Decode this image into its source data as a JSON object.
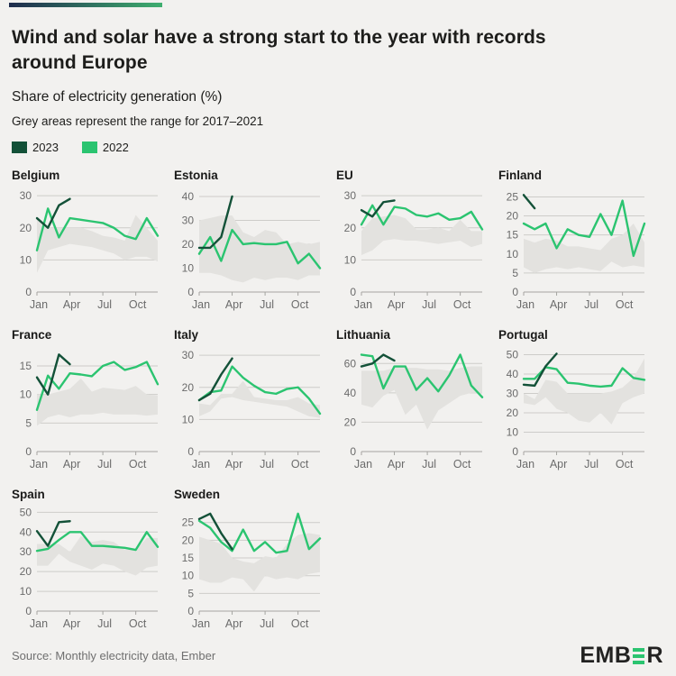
{
  "header": {
    "title": "Wind and solar have a strong start to the year with records around Europe",
    "subtitle": "Share of electricity generation (%)",
    "note": "Grey areas represent the range for 2017–2021"
  },
  "legend": [
    {
      "label": "2023",
      "color": "#135138"
    },
    {
      "label": "2022",
      "color": "#2bc470"
    }
  ],
  "colors": {
    "series_2023": "#135138",
    "series_2022": "#2bc470",
    "band": "#e3e2df",
    "background": "#f2f1ef",
    "gridline": "#cdccc9",
    "axis": "#a5a4a1",
    "tick_label": "#6b6b6b"
  },
  "footer": {
    "source": "Source: Monthly electricity data, Ember",
    "logo_left": "EMB",
    "logo_right": "R"
  },
  "chart_data": [
    {
      "type": "line",
      "title": "Belgium",
      "xticks": [
        "Jan",
        "Apr",
        "Jul",
        "Oct"
      ],
      "yticks": [
        0,
        10,
        20,
        30
      ],
      "ymax_plot": 32,
      "series": [
        {
          "name": "2023",
          "values": [
            23,
            20,
            27,
            29
          ]
        },
        {
          "name": "2022",
          "values": [
            13,
            26,
            17,
            23,
            22.5,
            22,
            21.5,
            20,
            17.5,
            16.5,
            23,
            17.5
          ]
        }
      ],
      "band_2017_2021": {
        "top": [
          23,
          20,
          20,
          20,
          20,
          19,
          17.5,
          17,
          16,
          24,
          20,
          16
        ],
        "bottom": [
          6,
          13,
          14,
          15,
          14.5,
          14,
          13,
          12,
          10,
          11,
          11,
          9.5
        ]
      }
    },
    {
      "type": "line",
      "title": "Estonia",
      "xticks": [
        "Jan",
        "Apr",
        "Jul",
        "Oct"
      ],
      "yticks": [
        0,
        10,
        20,
        30,
        40
      ],
      "ymax_plot": 43,
      "series": [
        {
          "name": "2023",
          "values": [
            18.5,
            18.5,
            23,
            40
          ]
        },
        {
          "name": "2022",
          "values": [
            16,
            23,
            13,
            26,
            20,
            20.5,
            20,
            20,
            21,
            12,
            16,
            10
          ]
        }
      ],
      "band_2017_2021": {
        "top": [
          30,
          31,
          32,
          32,
          25,
          23,
          26,
          25,
          20,
          21,
          20,
          21
        ],
        "bottom": [
          8,
          8,
          7,
          5,
          4,
          6,
          5,
          6,
          6,
          5,
          7,
          7
        ]
      }
    },
    {
      "type": "line",
      "title": "EU",
      "xticks": [
        "Jan",
        "Apr",
        "Jul",
        "Oct"
      ],
      "yticks": [
        0,
        10,
        20,
        30
      ],
      "ymax_plot": 32,
      "series": [
        {
          "name": "2023",
          "values": [
            25.5,
            23.5,
            28,
            28.5
          ]
        },
        {
          "name": "2022",
          "values": [
            21,
            27,
            21,
            26.5,
            26,
            24,
            23.5,
            24.5,
            22.5,
            23,
            25,
            19.5
          ]
        }
      ],
      "band_2017_2021": {
        "top": [
          19,
          23,
          23.5,
          24,
          23,
          19.5,
          19.5,
          20,
          19,
          22.5,
          19,
          19
        ],
        "bottom": [
          11.5,
          13,
          16,
          16.5,
          16,
          16,
          15.5,
          15,
          15.5,
          16,
          14,
          15
        ]
      }
    },
    {
      "type": "line",
      "title": "Finland",
      "xticks": [
        "Jan",
        "Apr",
        "Jul",
        "Oct"
      ],
      "yticks": [
        0,
        5,
        10,
        15,
        20,
        25
      ],
      "ymax_plot": 27,
      "series": [
        {
          "name": "2023",
          "values": [
            25.5,
            22
          ]
        },
        {
          "name": "2022",
          "values": [
            18,
            16.5,
            18,
            11.5,
            16.5,
            15,
            14.5,
            20.5,
            15,
            24,
            9.5,
            18
          ]
        }
      ],
      "band_2017_2021": {
        "top": [
          14,
          13,
          14,
          13.5,
          12,
          12,
          11.5,
          11,
          14,
          15,
          18,
          13
        ],
        "bottom": [
          6.5,
          5,
          6,
          6.5,
          6,
          6.5,
          6,
          5.5,
          8,
          6.5,
          7,
          6.5
        ]
      }
    },
    {
      "type": "line",
      "title": "France",
      "xticks": [
        "Jan",
        "Apr",
        "Jul",
        "Oct"
      ],
      "yticks": [
        0,
        5,
        10,
        15
      ],
      "ymax_plot": 18,
      "series": [
        {
          "name": "2023",
          "values": [
            13,
            10,
            17,
            15.3
          ]
        },
        {
          "name": "2022",
          "values": [
            7.3,
            13.3,
            11,
            13.7,
            13.5,
            13.2,
            15,
            15.7,
            14.3,
            14.8,
            15.7,
            11.8
          ]
        }
      ],
      "band_2017_2021": {
        "top": [
          10,
          10,
          10.5,
          11,
          12.8,
          10.5,
          11.2,
          11,
          10.8,
          11.5,
          10,
          9.8
        ],
        "bottom": [
          4.5,
          6,
          6.5,
          6,
          6.5,
          6.5,
          6.8,
          6.5,
          6.5,
          6.5,
          6.3,
          6.5
        ]
      }
    },
    {
      "type": "line",
      "title": "Italy",
      "xticks": [
        "Jan",
        "Apr",
        "Jul",
        "Oct"
      ],
      "yticks": [
        0,
        10,
        20,
        30
      ],
      "ymax_plot": 32,
      "series": [
        {
          "name": "2023",
          "values": [
            16,
            18,
            24,
            29
          ]
        },
        {
          "name": "2022",
          "values": [
            16,
            18.5,
            19,
            26.5,
            23,
            20.5,
            18.5,
            18,
            19.5,
            20,
            16.5,
            11.8
          ]
        }
      ],
      "band_2017_2021": {
        "top": [
          15,
          14.5,
          18,
          18,
          22,
          17,
          16.5,
          16,
          16,
          17,
          15,
          14.5
        ],
        "bottom": [
          11,
          12.5,
          16.5,
          17,
          16,
          15.5,
          15,
          14.5,
          14,
          12.5,
          11,
          10.5
        ]
      }
    },
    {
      "type": "line",
      "title": "Lithuania",
      "xticks": [
        "Jan",
        "Apr",
        "Jul",
        "Oct"
      ],
      "yticks": [
        0,
        20,
        40,
        60
      ],
      "ymax_plot": 70,
      "series": [
        {
          "name": "2023",
          "values": [
            58,
            60,
            66,
            62
          ]
        },
        {
          "name": "2022",
          "values": [
            66,
            65,
            43,
            58,
            58,
            42,
            50,
            41,
            52,
            66,
            45,
            37
          ]
        }
      ],
      "band_2017_2021": {
        "top": [
          55,
          55,
          55,
          57,
          57,
          57,
          56,
          56,
          55,
          57,
          58,
          58
        ],
        "bottom": [
          32,
          30,
          38,
          42,
          25,
          32,
          15,
          28,
          33,
          38,
          40,
          40
        ]
      }
    },
    {
      "type": "line",
      "title": "Portugal",
      "xticks": [
        "Jan",
        "Apr",
        "Jul",
        "Oct"
      ],
      "yticks": [
        0,
        10,
        20,
        30,
        40,
        50
      ],
      "ymax_plot": 53,
      "series": [
        {
          "name": "2023",
          "values": [
            34.5,
            34,
            44,
            50.5
          ]
        },
        {
          "name": "2022",
          "values": [
            37.5,
            37.5,
            43.5,
            42.5,
            35.5,
            35,
            34,
            33.5,
            34,
            43,
            38,
            37
          ]
        }
      ],
      "band_2017_2021": {
        "top": [
          30,
          27,
          37,
          36,
          30,
          30,
          30,
          30,
          31,
          33,
          38,
          48
        ],
        "bottom": [
          25,
          24,
          28,
          22,
          20,
          16,
          15,
          20,
          14,
          25,
          28,
          30
        ]
      }
    },
    {
      "type": "line",
      "title": "Spain",
      "xticks": [
        "Jan",
        "Apr",
        "Jul",
        "Oct"
      ],
      "yticks": [
        0,
        10,
        20,
        30,
        40,
        50
      ],
      "ymax_plot": 52,
      "series": [
        {
          "name": "2023",
          "values": [
            40.5,
            33,
            45,
            45.5
          ]
        },
        {
          "name": "2022",
          "values": [
            30.5,
            31.5,
            36,
            40,
            40,
            33,
            33,
            32.5,
            32,
            31,
            40,
            32.5
          ]
        }
      ],
      "band_2017_2021": {
        "top": [
          34,
          34,
          34,
          30,
          38,
          35,
          36,
          35,
          31,
          31,
          37,
          37
        ],
        "bottom": [
          23,
          23,
          29,
          25,
          23,
          21,
          24,
          23,
          20,
          18,
          22,
          23
        ]
      }
    },
    {
      "type": "line",
      "title": "Sweden",
      "xticks": [
        "Jan",
        "Apr",
        "Jul",
        "Oct"
      ],
      "yticks": [
        0,
        5,
        10,
        15,
        20,
        25
      ],
      "ymax_plot": 29,
      "series": [
        {
          "name": "2023",
          "values": [
            26,
            27.5,
            22,
            17.5
          ]
        },
        {
          "name": "2022",
          "values": [
            25.5,
            23.5,
            19.5,
            17,
            23,
            17,
            19.5,
            16.5,
            17,
            27.5,
            17.5,
            20.5
          ]
        }
      ],
      "band_2017_2021": {
        "top": [
          21,
          20,
          19,
          15,
          14,
          13.5,
          15.5,
          15,
          19,
          21.5,
          22,
          21.5
        ],
        "bottom": [
          9,
          8,
          8,
          9.5,
          9,
          5.5,
          10,
          9,
          9.5,
          9,
          10.5,
          11
        ]
      }
    }
  ]
}
